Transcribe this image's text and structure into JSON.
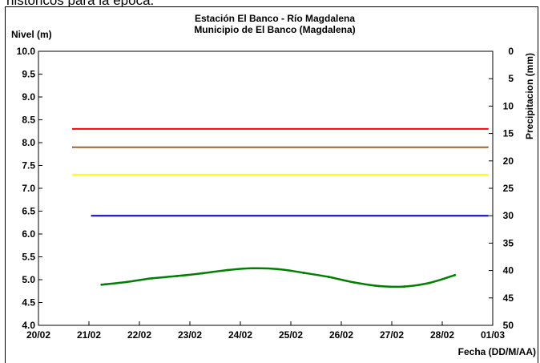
{
  "page": {
    "caption_fragment": "históricos para la época."
  },
  "chart_data": {
    "type": "line",
    "title": "Estación El Banco - Río Magdalena",
    "subtitle": "Municipio de El Banco (Magdalena)",
    "ylabel": "Nivel (m)",
    "y2label": "Precipitacion (mm)",
    "xlabel": "Fecha (DD/M/AA)",
    "x_ticks": [
      "20/02",
      "21/02",
      "22/02",
      "23/02",
      "24/02",
      "25/02",
      "26/02",
      "27/02",
      "28/02",
      "01/03"
    ],
    "y_ticks": [
      "10.0",
      "9.5",
      "9.0",
      "8.5",
      "8.0",
      "7.5",
      "7.0",
      "6.5",
      "6.0",
      "5.5",
      "5.0",
      "4.5",
      "4.0"
    ],
    "y2_ticks": [
      "0",
      "5",
      "10",
      "15",
      "20",
      "25",
      "30",
      "35",
      "40",
      "45",
      "50"
    ],
    "ylim": [
      4.0,
      10.0
    ],
    "y2lim": [
      50,
      0
    ],
    "xlim_days": [
      "20/02",
      "01/03"
    ],
    "grid": false,
    "thresholds": [
      {
        "color": "#ff0000",
        "value": 8.3,
        "x_start": "20/02 16:00",
        "x_end": "28/02 22:00"
      },
      {
        "color": "#996633",
        "value": 7.9,
        "x_start": "20/02 16:00",
        "x_end": "28/02 22:00"
      },
      {
        "color": "#ffff00",
        "value": 7.3,
        "x_start": "20/02 16:00",
        "x_end": "28/02 22:00"
      },
      {
        "color": "#0000cc",
        "value": 6.4,
        "x_start": "21/02 01:00",
        "x_end": "28/02 22:00"
      }
    ],
    "series": [
      {
        "color": "#008000",
        "x": [
          "21/02 06:00",
          "21/02 18:00",
          "22/02 06:00",
          "22/02 18:00",
          "23/02 06:00",
          "23/02 18:00",
          "24/02 06:00",
          "24/02 18:00",
          "25/02 06:00",
          "25/02 18:00",
          "26/02 06:00",
          "26/02 18:00",
          "27/02 06:00",
          "27/02 18:00",
          "28/02 06:00"
        ],
        "values": [
          4.89,
          4.95,
          5.03,
          5.08,
          5.14,
          5.21,
          5.25,
          5.23,
          5.15,
          5.06,
          4.94,
          4.86,
          4.85,
          4.93,
          5.1
        ]
      }
    ]
  }
}
